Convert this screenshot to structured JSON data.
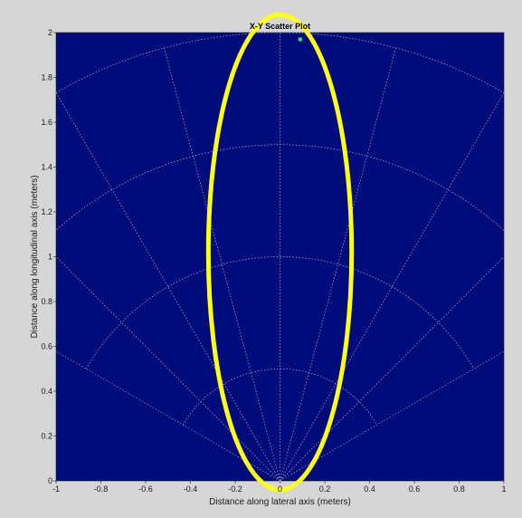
{
  "chart_data": {
    "type": "scatter",
    "title": "X-Y Scatter Plot",
    "xlabel": "Distance along lateral axis (meters)",
    "ylabel": "Distance along longitudinal axis (meters)",
    "xlim": [
      -1,
      1
    ],
    "ylim": [
      0,
      2
    ],
    "xticks": [
      "-1",
      "-0.8",
      "-0.6",
      "-0.4",
      "-0.2",
      "0",
      "0.2",
      "0.4",
      "0.6",
      "0.8",
      "1"
    ],
    "yticks": [
      "0",
      "0.2",
      "0.4",
      "0.6",
      "0.8",
      "1",
      "1.2",
      "1.4",
      "1.6",
      "1.8",
      "2"
    ],
    "points": [
      {
        "x": 0.09,
        "y": 1.97
      }
    ],
    "polar_grid": {
      "radii": [
        0.5,
        1.0,
        1.5,
        2.0
      ],
      "angles_deg": [
        -60,
        -45,
        -30,
        -15,
        0,
        15,
        30,
        45,
        60
      ]
    },
    "annotation_ellipse": {
      "cx": 0,
      "cy": 1.02,
      "rx": 0.32,
      "ry": 1.06
    },
    "colors": {
      "background": "#d6d6d6",
      "plot_area": "#000c7a",
      "grid": "#a8b4d6",
      "point": "#2ee86a",
      "ellipse": "#ffff1a"
    }
  }
}
